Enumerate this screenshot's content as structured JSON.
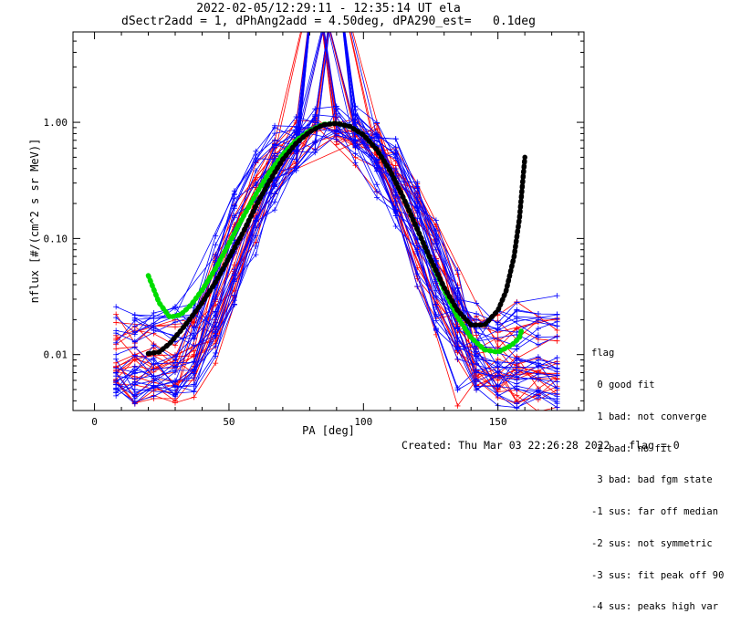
{
  "chart_data": {
    "type": "line",
    "title": "2022-02-05/12:29:11 - 12:35:14 UT ela",
    "subtitle": "dSectr2add = 1, dPhAng2add = 4.50deg, dPA290_est=   0.1deg",
    "xlabel": "PA [deg]",
    "ylabel": "nflux [#/(cm^2 s sr MeV)]",
    "xlim": [
      -8,
      182
    ],
    "ylim": [
      0.0033,
      6.0
    ],
    "yscale": "log",
    "x_ticks": [
      0,
      50,
      100,
      150
    ],
    "x_tick_labels": [
      "0",
      "50",
      "100",
      "150"
    ],
    "y_ticks": [
      0.01,
      0.1,
      1.0
    ],
    "y_tick_labels": [
      "0.01",
      "0.10",
      "1.00"
    ],
    "grid": false,
    "series": [
      {
        "color": "#00dd00",
        "style": "thick-dots",
        "x": [
          20,
          24,
          28,
          32,
          36,
          40,
          45,
          50,
          55,
          60,
          65,
          70,
          75,
          80,
          85,
          90,
          95,
          100,
          105,
          110,
          115,
          120,
          125,
          130,
          135,
          140,
          145,
          150,
          155,
          158,
          159
        ],
        "values": [
          0.048,
          0.028,
          0.021,
          0.022,
          0.027,
          0.036,
          0.055,
          0.09,
          0.15,
          0.24,
          0.37,
          0.53,
          0.7,
          0.85,
          0.96,
          0.98,
          0.92,
          0.78,
          0.58,
          0.38,
          0.22,
          0.12,
          0.065,
          0.036,
          0.021,
          0.014,
          0.011,
          0.0105,
          0.012,
          0.014,
          0.017
        ]
      },
      {
        "color": "#000000",
        "style": "thick-dots",
        "x": [
          20,
          24,
          28,
          32,
          36,
          40,
          45,
          50,
          55,
          60,
          65,
          70,
          75,
          80,
          85,
          90,
          95,
          100,
          105,
          110,
          115,
          120,
          125,
          130,
          135,
          140,
          145,
          150,
          153,
          156,
          158,
          160
        ],
        "values": [
          0.0102,
          0.0105,
          0.0125,
          0.016,
          0.021,
          0.028,
          0.042,
          0.068,
          0.11,
          0.19,
          0.31,
          0.48,
          0.66,
          0.83,
          0.95,
          0.98,
          0.92,
          0.78,
          0.58,
          0.38,
          0.22,
          0.12,
          0.066,
          0.038,
          0.024,
          0.018,
          0.018,
          0.024,
          0.035,
          0.07,
          0.15,
          0.5
        ]
      }
    ],
    "bundles": [
      {
        "color": "#ff0000",
        "count": 22,
        "profile": "red"
      },
      {
        "color": "#0000ff",
        "count": 30,
        "profile": "blue"
      }
    ],
    "background_traces_note": ""
  },
  "legend": {
    "header": "flag",
    "items": [
      " 0 good fit",
      " 1 bad: not converge",
      " 2 bad: no fit",
      " 3 bad: bad fgm state",
      "-1 sus: far off median",
      "-2 sus: not symmetric",
      "-3 sus: fit peak off 90",
      "-4 sus: peaks high var"
    ]
  },
  "footer": {
    "created": "Created: Thu Mar 03 22:26:28 2022",
    "flag": "flag = 0"
  }
}
